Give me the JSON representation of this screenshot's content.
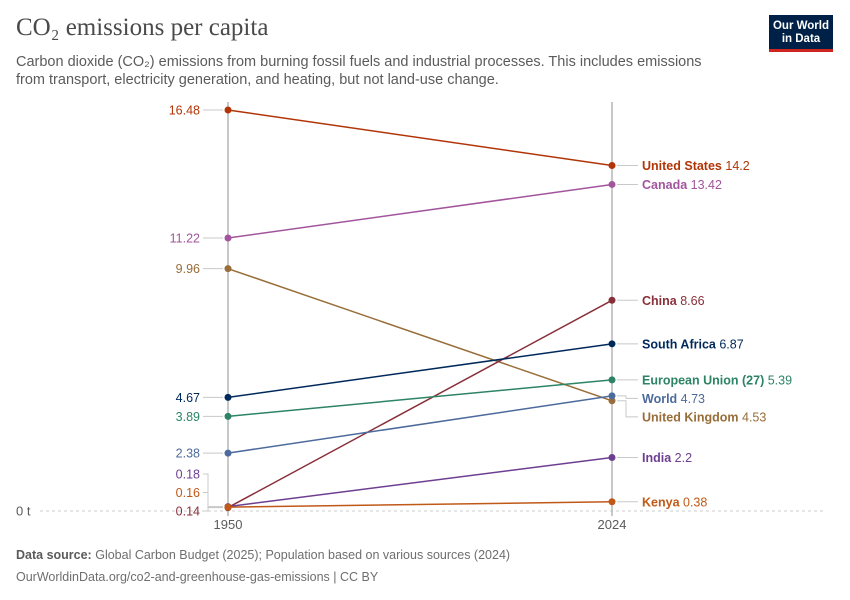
{
  "header": {
    "title": "CO₂ emissions per capita",
    "subtitle": "Carbon dioxide (CO₂) emissions from burning fossil fuels and industrial processes. This includes emissions from transport, electricity generation, and heating, but not land-use change."
  },
  "logo": {
    "line1": "Our World",
    "line2": "in Data",
    "bg_color": "#002147",
    "accent_color": "#ce261e"
  },
  "footer": {
    "source_label": "Data source:",
    "source_text": "Global Carbon Budget (2025); Population based on various sources (2024)",
    "url_text": "OurWorldinData.org/co2-and-greenhouse-gas-emissions | CC BY"
  },
  "chart_data": {
    "type": "slope",
    "x_categories": [
      "1950",
      "2024"
    ],
    "y_unit_label": "0 t",
    "ylim": [
      0,
      16.48
    ],
    "series": [
      {
        "name": "United States",
        "color": "#b13507",
        "start": 16.48,
        "end": 14.2,
        "start_label": "16.48",
        "end_label": "14.2"
      },
      {
        "name": "Canada",
        "color": "#a2559c",
        "start": 11.22,
        "end": 13.42,
        "start_label": "11.22",
        "end_label": "13.42"
      },
      {
        "name": "United Kingdom",
        "color": "#996d39",
        "start": 9.96,
        "end": 4.53,
        "start_label": "9.96",
        "end_label": "4.53"
      },
      {
        "name": "China",
        "color": "#883039",
        "start": 0.14,
        "end": 8.66,
        "start_label": "0.14",
        "end_label": "8.66"
      },
      {
        "name": "South Africa",
        "color": "#00295b",
        "start": 4.67,
        "end": 6.87,
        "start_label": "4.67",
        "end_label": "6.87"
      },
      {
        "name": "European Union (27)",
        "color": "#2c8465",
        "start": 3.89,
        "end": 5.39,
        "start_label": "3.89",
        "end_label": "5.39"
      },
      {
        "name": "World",
        "color": "#4c6a9c",
        "start": 2.38,
        "end": 4.73,
        "start_label": "2.38",
        "end_label": "4.73"
      },
      {
        "name": "India",
        "color": "#6d3e91",
        "start": 0.18,
        "end": 2.2,
        "start_label": "0.18",
        "end_label": "2.2"
      },
      {
        "name": "Kenya",
        "color": "#c05917",
        "start": 0.16,
        "end": 0.38,
        "start_label": "0.16",
        "end_label": "0.38"
      }
    ]
  }
}
